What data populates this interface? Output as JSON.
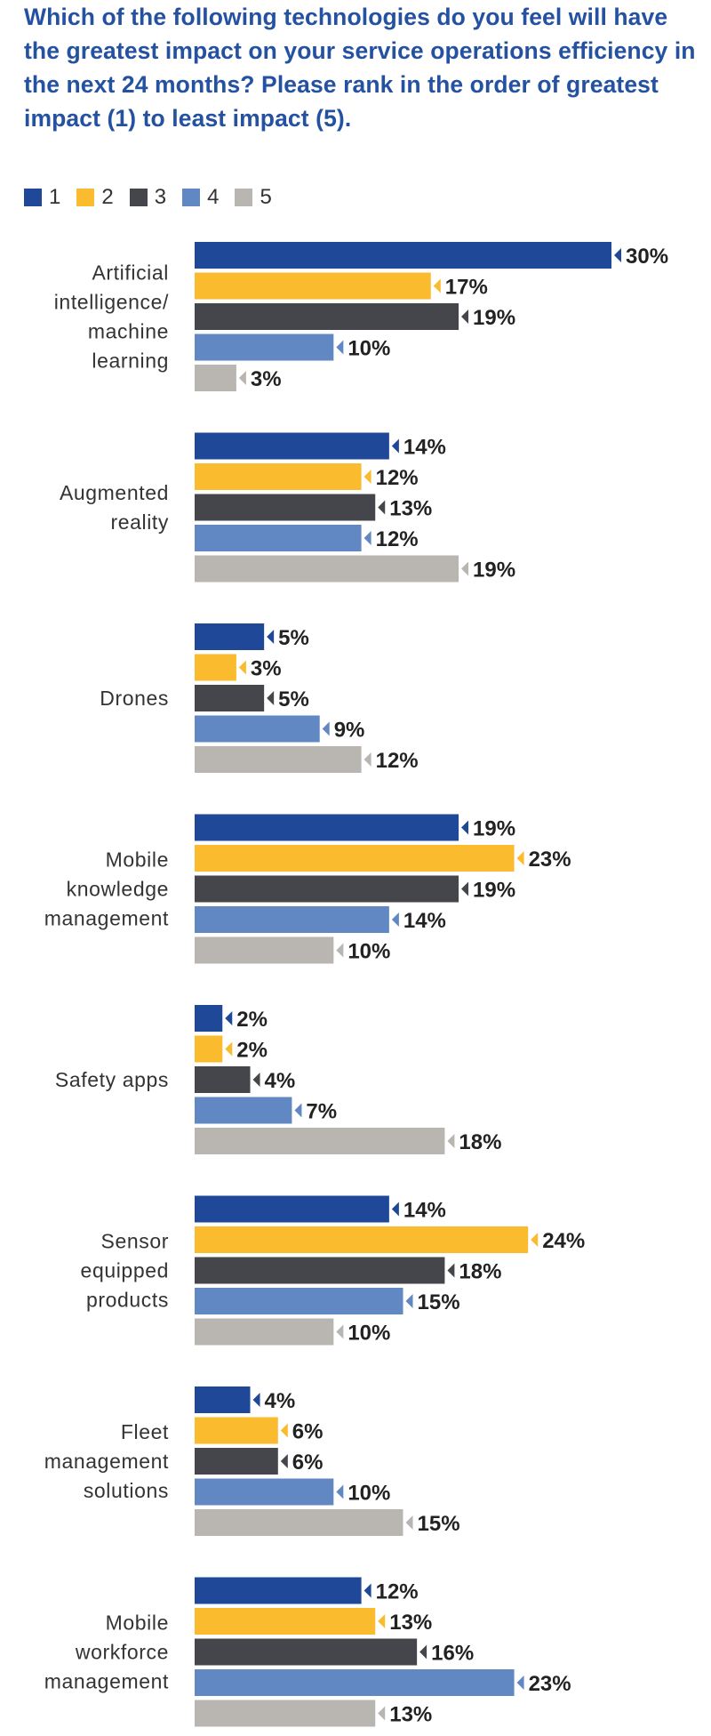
{
  "title": "Which of the following technologies do you feel will have the greatest impact on your service operations efficiency in the next 24 months? Please rank in the order of greatest impact (1) to least impact (5).",
  "colors": {
    "rank1": "#1f4898",
    "rank2": "#fbbb2e",
    "rank3": "#45464b",
    "rank4": "#6188c2",
    "rank5": "#b9b5b1",
    "title": "#2451a0",
    "label": "#333333",
    "value": "#222222"
  },
  "chart_data": {
    "type": "bar",
    "orientation": "horizontal",
    "title": "Which of the following technologies do you feel will have the greatest impact on your service operations efficiency in the next 24 months? Please rank in the order of greatest impact (1) to least impact (5).",
    "xlabel": "",
    "ylabel": "",
    "unit": "%",
    "legend_position": "top-left",
    "grid": false,
    "xlim": [
      0,
      30
    ],
    "legend": [
      "1",
      "2",
      "3",
      "4",
      "5"
    ],
    "categories": [
      {
        "lines": [
          "Artificial",
          "intelligence/",
          "machine",
          "learning"
        ],
        "values": [
          30,
          17,
          19,
          10,
          3
        ]
      },
      {
        "lines": [
          "Augmented",
          "reality"
        ],
        "values": [
          14,
          12,
          13,
          12,
          19
        ]
      },
      {
        "lines": [
          "Drones"
        ],
        "values": [
          5,
          3,
          5,
          9,
          12
        ]
      },
      {
        "lines": [
          "Mobile",
          "knowledge",
          "management"
        ],
        "values": [
          19,
          23,
          19,
          14,
          10
        ]
      },
      {
        "lines": [
          "Safety apps"
        ],
        "values": [
          2,
          2,
          4,
          7,
          18
        ]
      },
      {
        "lines": [
          "Sensor",
          "equipped",
          "products"
        ],
        "values": [
          14,
          24,
          18,
          15,
          10
        ]
      },
      {
        "lines": [
          "Fleet",
          "management",
          "solutions"
        ],
        "values": [
          4,
          6,
          6,
          10,
          15
        ]
      },
      {
        "lines": [
          "Mobile",
          "workforce",
          "management"
        ],
        "values": [
          12,
          13,
          16,
          23,
          13
        ]
      }
    ]
  }
}
